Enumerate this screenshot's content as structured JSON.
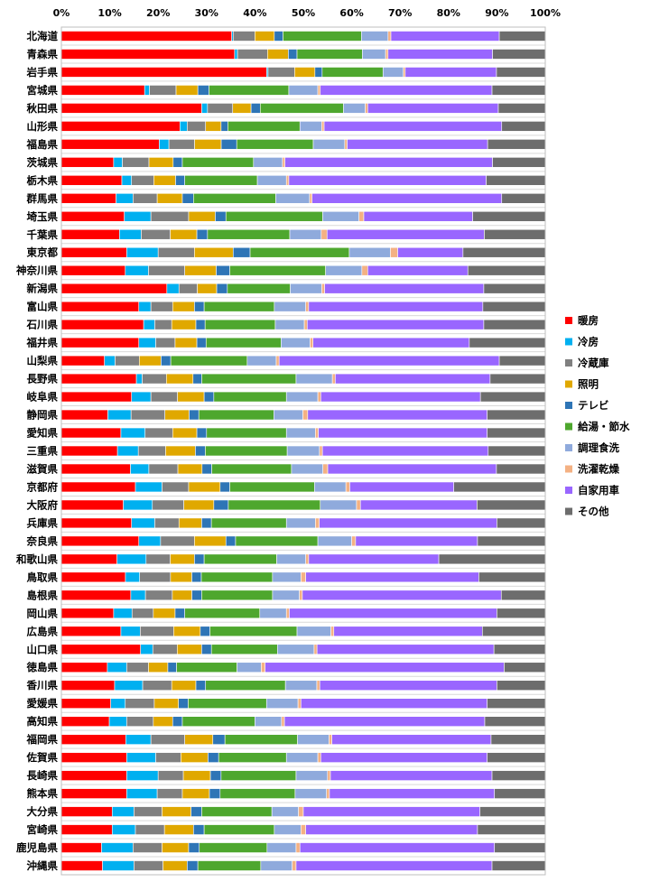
{
  "chart_data": {
    "type": "bar",
    "orientation": "horizontal",
    "stacked": "percent",
    "xlim": [
      0,
      100
    ],
    "x_ticks": [
      "0%",
      "10%",
      "20%",
      "30%",
      "40%",
      "50%",
      "60%",
      "70%",
      "80%",
      "90%",
      "100%"
    ],
    "grid": true,
    "legend_position": "right",
    "categories": [
      "北海道",
      "青森県",
      "岩手県",
      "宮城県",
      "秋田県",
      "山形県",
      "福島県",
      "茨城県",
      "栃木県",
      "群馬県",
      "埼玉県",
      "千葉県",
      "東京都",
      "神奈川県",
      "新潟県",
      "富山県",
      "石川県",
      "福井県",
      "山梨県",
      "長野県",
      "岐阜県",
      "静岡県",
      "愛知県",
      "三重県",
      "滋賀県",
      "京都府",
      "大阪府",
      "兵庫県",
      "奈良県",
      "和歌山県",
      "鳥取県",
      "島根県",
      "岡山県",
      "広島県",
      "山口県",
      "徳島県",
      "香川県",
      "愛媛県",
      "高知県",
      "福岡県",
      "佐賀県",
      "長崎県",
      "熊本県",
      "大分県",
      "宮崎県",
      "鹿児島県",
      "沖縄県"
    ],
    "series": [
      {
        "name": "暖房",
        "color": "#FF0000",
        "values": [
          35.2,
          35.8,
          42.5,
          17.2,
          29.0,
          24.5,
          20.2,
          10.8,
          12.5,
          11.3,
          13.0,
          12.0,
          13.5,
          13.2,
          21.8,
          16.0,
          17.0,
          16.0,
          8.9,
          15.5,
          14.5,
          9.6,
          12.3,
          11.3,
          14.3,
          15.3,
          12.8,
          14.5,
          16.0,
          11.5,
          13.5,
          14.2,
          10.8,
          12.3,
          16.2,
          9.5,
          11.0,
          10.2,
          9.9,
          13.3,
          13.5,
          13.5,
          13.5,
          10.5,
          10.5,
          8.3,
          8.5
        ]
      },
      {
        "name": "冷房",
        "color": "#00B0F0",
        "values": [
          0.3,
          0.6,
          0.3,
          1.0,
          1.2,
          1.5,
          2.0,
          1.8,
          2.0,
          3.5,
          5.5,
          4.5,
          6.5,
          4.8,
          2.5,
          2.5,
          2.3,
          3.5,
          2.2,
          1.2,
          4.0,
          4.8,
          5.0,
          4.2,
          3.8,
          5.5,
          6.0,
          4.8,
          4.5,
          6.0,
          3.0,
          3.0,
          3.8,
          4.0,
          2.5,
          4.0,
          5.8,
          3.0,
          3.6,
          5.2,
          6.0,
          6.5,
          6.3,
          4.5,
          4.8,
          6.5,
          6.5
        ]
      },
      {
        "name": "冷蔵庫",
        "color": "#808080",
        "values": [
          4.5,
          6.2,
          5.5,
          5.5,
          5.2,
          3.8,
          5.3,
          5.5,
          4.6,
          5.0,
          7.8,
          6.0,
          7.5,
          7.5,
          3.8,
          4.5,
          3.5,
          4.0,
          5.0,
          5.0,
          5.5,
          7.0,
          5.7,
          5.5,
          6.0,
          5.5,
          6.5,
          5.0,
          7.0,
          5.0,
          6.5,
          5.5,
          4.4,
          6.9,
          5.0,
          4.5,
          6.0,
          6.0,
          5.5,
          7.0,
          5.2,
          5.2,
          5.2,
          5.8,
          6.0,
          6.0,
          6.0
        ]
      },
      {
        "name": "照明",
        "color": "#E0A800",
        "values": [
          4.0,
          4.3,
          4.2,
          4.5,
          3.8,
          3.2,
          5.5,
          5.0,
          4.5,
          5.2,
          5.5,
          5.5,
          8.0,
          6.5,
          4.0,
          4.5,
          5.0,
          4.5,
          4.5,
          5.5,
          5.5,
          5.0,
          5.0,
          6.0,
          5.0,
          6.5,
          6.2,
          4.7,
          6.5,
          5.0,
          4.5,
          4.0,
          4.5,
          5.5,
          5.0,
          4.0,
          5.0,
          5.0,
          4.0,
          5.8,
          5.6,
          5.6,
          5.6,
          6.0,
          6.0,
          5.5,
          5.0
        ]
      },
      {
        "name": "テレビ",
        "color": "#2E75B6",
        "values": [
          1.8,
          1.8,
          1.5,
          2.3,
          1.9,
          1.4,
          3.2,
          1.9,
          1.9,
          2.3,
          2.2,
          2.2,
          3.5,
          2.8,
          2.2,
          2.0,
          1.9,
          1.9,
          2.0,
          1.8,
          2.0,
          2.0,
          2.0,
          2.0,
          2.0,
          2.0,
          3.0,
          2.0,
          2.0,
          2.0,
          2.0,
          2.0,
          2.0,
          2.0,
          2.0,
          1.8,
          2.0,
          2.0,
          2.0,
          2.5,
          2.2,
          2.2,
          2.2,
          2.2,
          2.2,
          2.2,
          2.2
        ]
      },
      {
        "name": "給湯・節水",
        "color": "#4EA72E",
        "values": [
          16.2,
          13.5,
          12.6,
          16.5,
          17.2,
          14.9,
          15.8,
          14.7,
          15.0,
          17.0,
          20.0,
          17.0,
          20.5,
          19.8,
          13.0,
          14.5,
          14.5,
          15.5,
          15.8,
          19.5,
          15.0,
          15.5,
          16.5,
          16.5,
          16.5,
          17.5,
          19.0,
          15.5,
          17.0,
          15.0,
          15.0,
          14.5,
          15.5,
          18.0,
          13.5,
          12.5,
          16.5,
          16.2,
          15.0,
          15.0,
          14.0,
          15.5,
          15.5,
          14.5,
          14.5,
          14.0,
          13.0
        ]
      },
      {
        "name": "調理食洗",
        "color": "#8FAADC",
        "values": [
          5.5,
          4.8,
          4.2,
          6.0,
          4.5,
          4.5,
          6.5,
          6.0,
          6.0,
          7.0,
          7.5,
          6.5,
          8.5,
          7.5,
          6.5,
          6.5,
          6.0,
          6.0,
          6.0,
          7.5,
          6.5,
          6.0,
          6.0,
          6.5,
          6.5,
          6.5,
          7.5,
          6.0,
          7.0,
          6.0,
          6.0,
          5.5,
          5.5,
          7.0,
          7.5,
          5.0,
          6.5,
          6.5,
          5.5,
          6.5,
          6.5,
          6.5,
          6.5,
          5.5,
          5.5,
          6.0,
          6.5
        ]
      },
      {
        "name": "洗濯乾燥",
        "color": "#F4B183",
        "values": [
          0.6,
          0.5,
          0.4,
          0.5,
          0.5,
          0.5,
          0.5,
          0.5,
          0.5,
          0.5,
          1.0,
          1.2,
          1.5,
          1.2,
          0.6,
          0.6,
          0.6,
          0.6,
          0.6,
          0.6,
          0.6,
          1.0,
          0.6,
          0.6,
          1.0,
          0.8,
          0.8,
          0.8,
          0.8,
          0.6,
          1.0,
          0.6,
          0.6,
          0.6,
          0.6,
          0.8,
          0.6,
          0.6,
          0.6,
          0.6,
          0.6,
          0.6,
          0.6,
          1.0,
          1.0,
          0.8,
          0.8
        ]
      },
      {
        "name": "自家用車",
        "color": "#9966FF",
        "values": [
          22.4,
          21.6,
          18.9,
          35.5,
          27.0,
          36.7,
          29.0,
          42.9,
          40.8,
          39.2,
          22.5,
          32.5,
          13.5,
          20.7,
          32.9,
          36.0,
          36.5,
          32.3,
          45.5,
          32.0,
          33.0,
          37.1,
          34.9,
          33.4,
          34.9,
          21.5,
          24.1,
          36.7,
          25.2,
          26.9,
          36.5,
          40.7,
          42.9,
          30.7,
          36.2,
          49.4,
          36.6,
          38.5,
          41.4,
          32.9,
          34.4,
          33.4,
          34.1,
          36.5,
          35.5,
          40.2,
          40.5
        ]
      },
      {
        "name": "その他",
        "color": "#6D6D6D",
        "values": [
          9.5,
          10.9,
          10.1,
          11.0,
          9.7,
          9.0,
          11.9,
          10.9,
          12.2,
          9.0,
          15.0,
          12.6,
          17.0,
          16.0,
          12.7,
          12.9,
          12.7,
          15.7,
          9.5,
          11.4,
          13.4,
          12.0,
          12.0,
          11.5,
          10.1,
          18.9,
          14.1,
          10.0,
          14.0,
          22.0,
          14.0,
          9.0,
          10.0,
          13.0,
          10.5,
          8.5,
          10.0,
          12.0,
          12.5,
          11.2,
          12.0,
          11.0,
          10.5,
          13.5,
          14.0,
          10.5,
          11.0
        ]
      }
    ]
  }
}
